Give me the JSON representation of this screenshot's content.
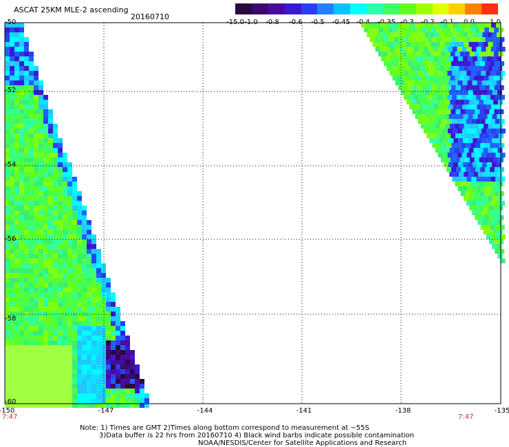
{
  "header": {
    "title": "ASCAT 25KM MLE-2 ascending",
    "date": "20160710"
  },
  "colorbar": {
    "labels": [
      "-15.0",
      "-1.0",
      "-0.8",
      "-0.6",
      "-0.5",
      "-0.45",
      "-0.4",
      "-0.35",
      "-0.3",
      "-0.2",
      "-0.1",
      "0.0",
      "1.0"
    ],
    "colors": [
      "#2b0a3d",
      "#3a0a6e",
      "#4a0aa0",
      "#3a1ad0",
      "#2a40f0",
      "#2080ff",
      "#10c0ff",
      "#00ffff",
      "#30ffb0",
      "#40ff60",
      "#60ff20",
      "#a0ff00",
      "#e0ff00",
      "#ffd000",
      "#ff8000",
      "#ff3010"
    ]
  },
  "axes": {
    "y_labels": [
      "-50",
      "-52",
      "-54",
      "-56",
      "-58",
      "-60"
    ],
    "x_labels": [
      "-150",
      "-147",
      "-144",
      "-141",
      "-138",
      "-135"
    ]
  },
  "times": {
    "left": "7:47",
    "right": "7:47"
  },
  "note": {
    "line1": "Note: 1) Times are GMT 2)Times along bottom correspond to measurement at ~55S",
    "line2": "3)Data buffer is 22 hrs from 20160710 4) Black wind barbs indicate possible contamination",
    "line3": "NOAA/NESDIS/Center for Satellite Applications and Research"
  }
}
